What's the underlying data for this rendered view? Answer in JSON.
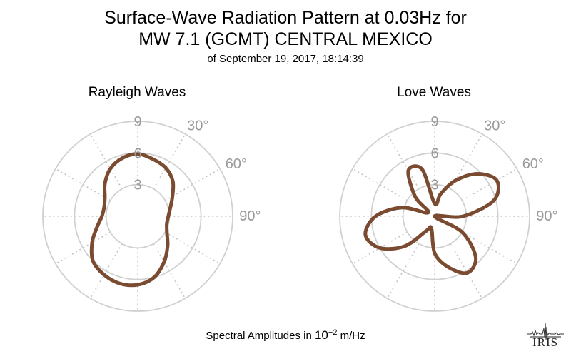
{
  "header": {
    "title_line1": "Surface-Wave Radiation Pattern at 0.03Hz for",
    "title_line2": "MW 7.1 (GCMT) CENTRAL MEXICO",
    "subtitle": "of September 19, 2017, 18:14:39"
  },
  "footer": {
    "prefix": "Spectral Amplitudes in ",
    "base": "10",
    "exponent": "−2",
    "suffix": " m/Hz"
  },
  "logo_text": "IRIS",
  "colors": {
    "pattern": "#7a4b30",
    "grid": "#d0d0d0",
    "grid_dotted": "#c4c4c4",
    "tick_label": "#9a9a9a"
  },
  "chart_data": [
    {
      "type": "polar-line",
      "title": "Rayleigh Waves",
      "theta_unit": "degrees",
      "theta_zero": "top",
      "theta_direction": "clockwise",
      "theta_ticks": [
        30,
        60,
        90
      ],
      "theta_tick_labels": [
        "30°",
        "60°",
        "90°"
      ],
      "r_ticks": [
        3,
        6,
        9
      ],
      "r_tick_labels": [
        "3",
        "6",
        "9"
      ],
      "rlim": [
        0,
        9
      ],
      "grid": true,
      "series": [
        {
          "theta": [
            0,
            15,
            30,
            45,
            60,
            75,
            90,
            105,
            120,
            135,
            150,
            165,
            180,
            195,
            210,
            225,
            240,
            255,
            270,
            285,
            300,
            315,
            330,
            345
          ],
          "r": [
            5.9,
            5.6,
            5.3,
            4.7,
            3.8,
            3.2,
            2.9,
            2.85,
            3.2,
            4.0,
            5.0,
            6.0,
            6.5,
            6.6,
            6.4,
            6.0,
            5.0,
            4.0,
            3.4,
            3.3,
            3.6,
            4.4,
            5.2,
            5.7
          ],
          "color": "#7a4b30"
        }
      ]
    },
    {
      "type": "polar-line",
      "title": "Love Waves",
      "theta_unit": "degrees",
      "theta_zero": "top",
      "theta_direction": "clockwise",
      "theta_ticks": [
        30,
        60,
        90
      ],
      "theta_tick_labels": [
        "30°",
        "60°",
        "90°"
      ],
      "r_ticks": [
        3,
        6,
        9
      ],
      "r_tick_labels": [
        "3",
        "6",
        "9"
      ],
      "rlim": [
        0,
        9
      ],
      "grid": true,
      "series": [
        {
          "theta": [
            0,
            15,
            30,
            45,
            60,
            75,
            90,
            105,
            120,
            135,
            150,
            165,
            180,
            195,
            210,
            225,
            240,
            255,
            270,
            285,
            300,
            315,
            330,
            345
          ],
          "r": [
            1.2,
            2.2,
            3.9,
            5.7,
            6.8,
            5.8,
            2.7,
            0.0,
            3.0,
            5.5,
            6.2,
            5.0,
            3.5,
            1.2,
            1.6,
            4.0,
            6.0,
            6.8,
            5.6,
            3.2,
            0.7,
            2.6,
            5.0,
            4.6
          ],
          "color": "#7a4b30"
        }
      ]
    }
  ]
}
